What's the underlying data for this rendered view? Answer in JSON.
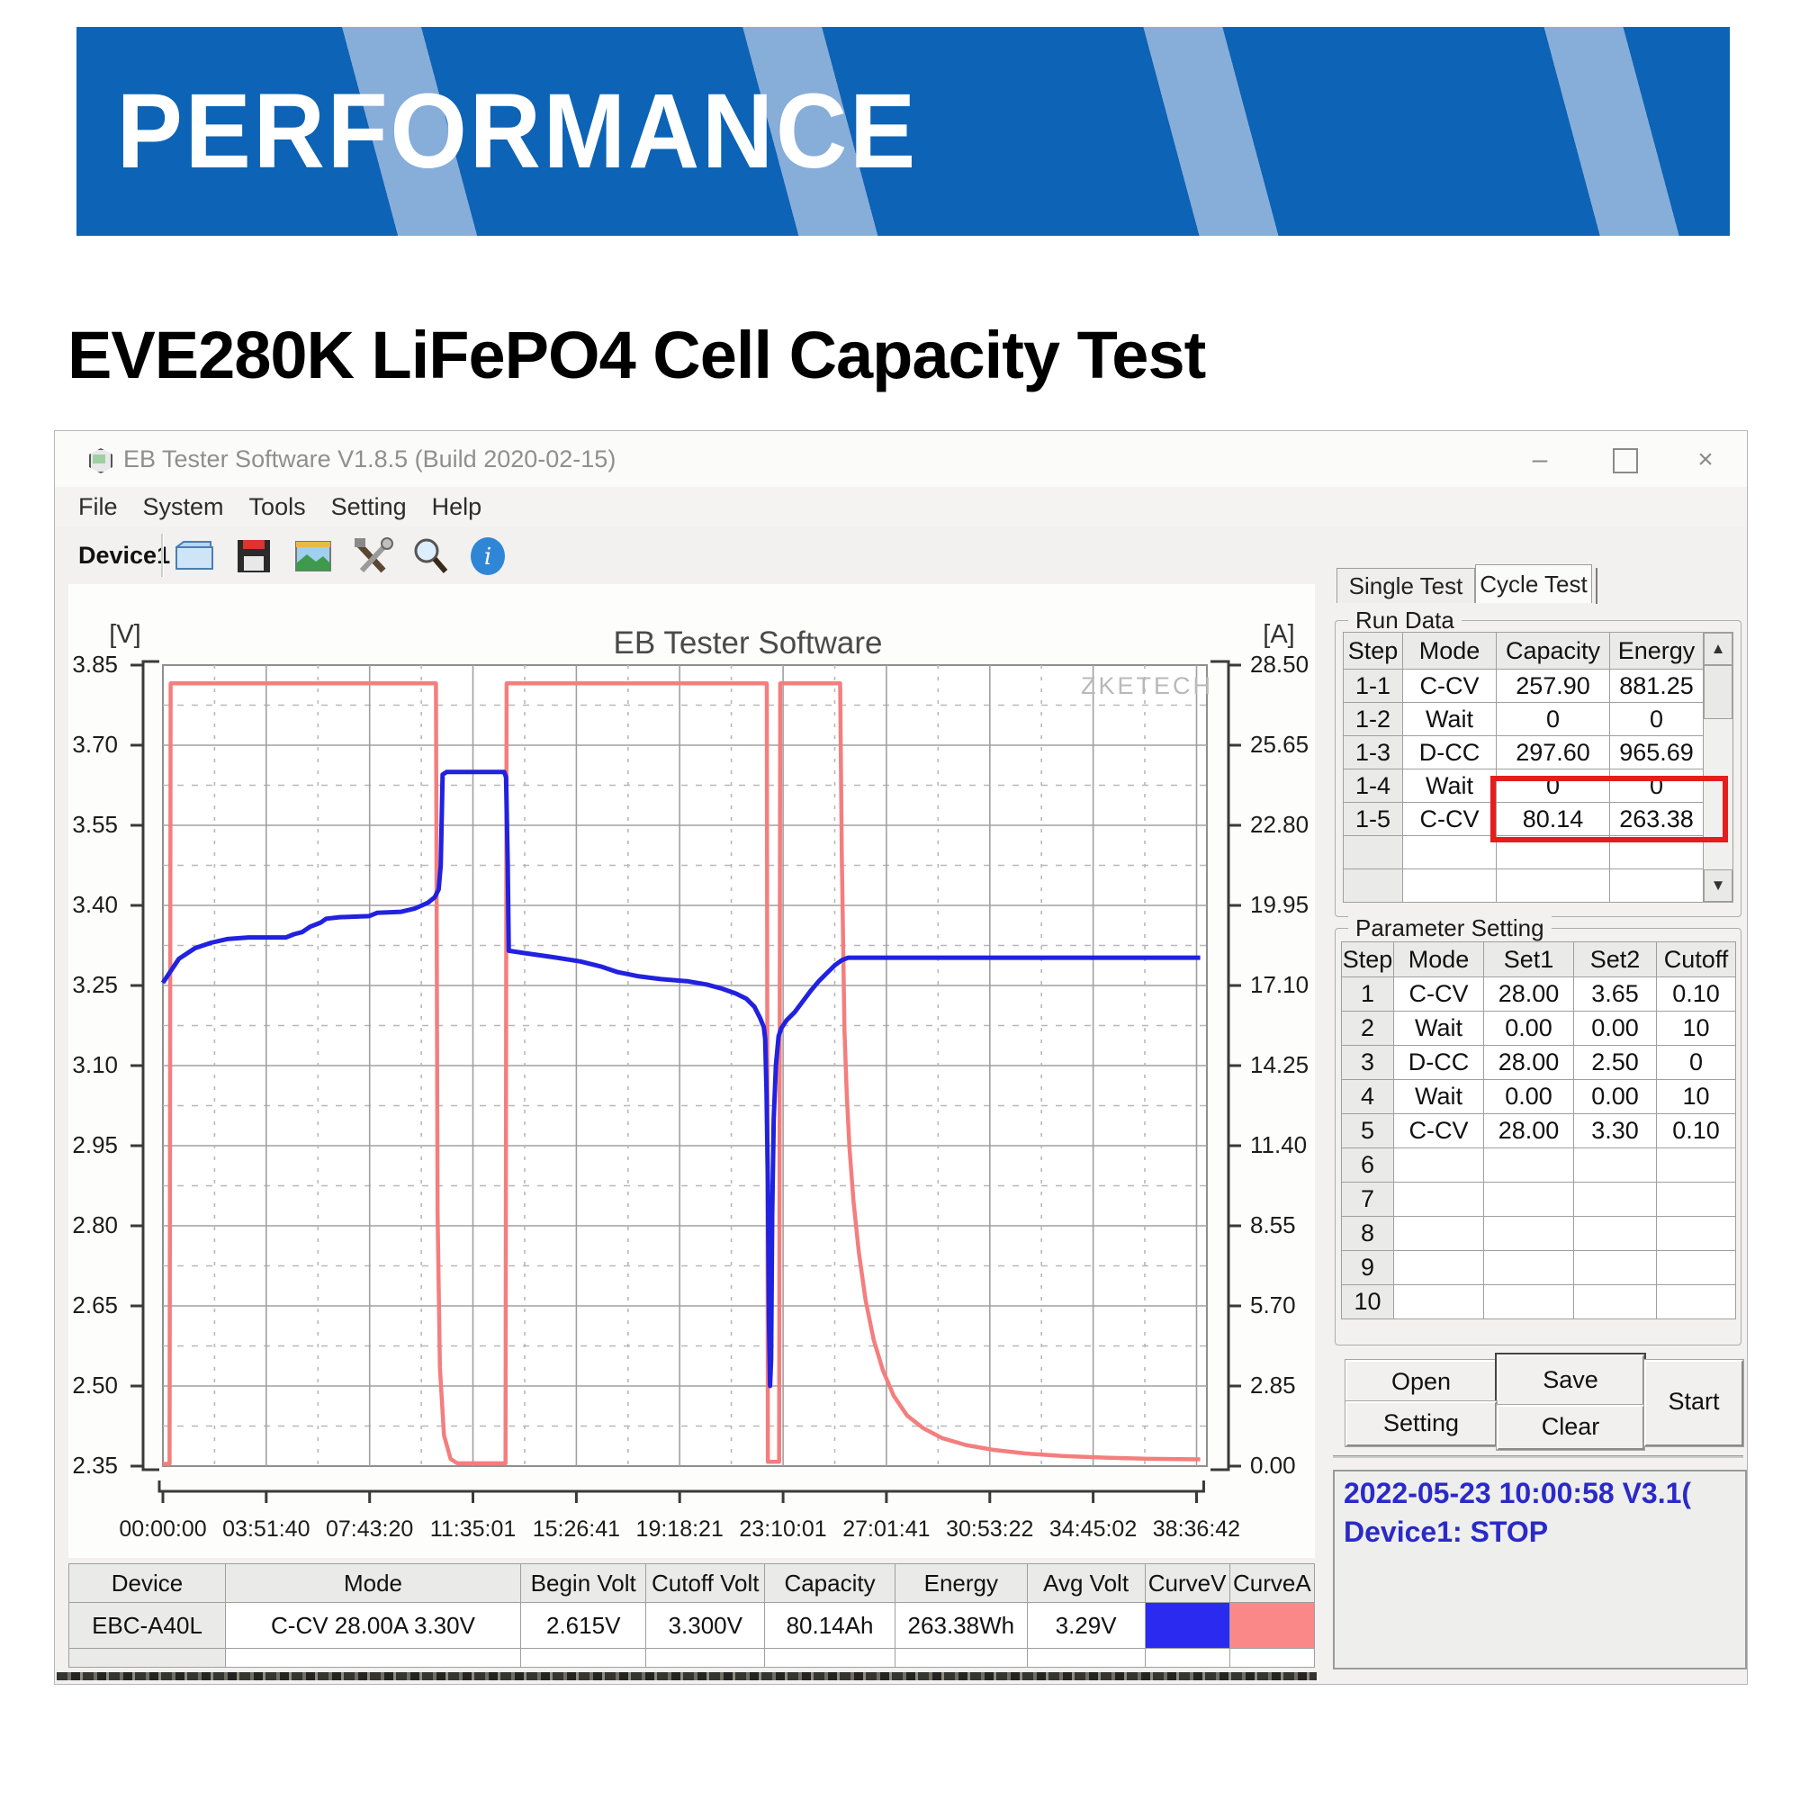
{
  "banner": {
    "title": "PERFORMANCE",
    "bg_color": "#0d63b5",
    "stripe_color": "#87add9"
  },
  "heading": "EVE280K LiFePO4 Cell Capacity Test",
  "window": {
    "title": "EB Tester Software V1.8.5 (Build 2020-02-15)",
    "menu": [
      "File",
      "System",
      "Tools",
      "Setting",
      "Help"
    ],
    "toolbar": {
      "device_label": "Device1",
      "icons": [
        "folder-icon",
        "save-icon",
        "image-icon",
        "tools-icon",
        "zoom-icon",
        "info-icon"
      ]
    },
    "controls": {
      "minimize": "–",
      "maximize": "",
      "close": "×"
    }
  },
  "chart_data": {
    "type": "line",
    "title": "EB Tester Software",
    "watermark": "ZKETECH",
    "left_axis_unit": "[V]",
    "right_axis_unit": "[A]",
    "x_ticks": [
      "00:00:00",
      "03:51:40",
      "07:43:20",
      "11:35:01",
      "15:26:41",
      "19:18:21",
      "23:10:01",
      "27:01:41",
      "30:53:22",
      "34:45:02",
      "38:36:42"
    ],
    "x_tick_hours": [
      0,
      3.8611,
      7.7222,
      11.5836,
      15.4447,
      19.3058,
      23.1669,
      27.0281,
      30.8894,
      34.7506,
      38.6117
    ],
    "x_range_hours": [
      0,
      39.0
    ],
    "v_ticks": [
      "3.85",
      "3.70",
      "3.55",
      "3.40",
      "3.25",
      "3.10",
      "2.95",
      "2.80",
      "2.65",
      "2.50",
      "2.35"
    ],
    "v_range": [
      2.35,
      3.85
    ],
    "a_ticks": [
      "28.50",
      "25.65",
      "22.80",
      "19.95",
      "17.10",
      "14.25",
      "11.40",
      "8.55",
      "5.70",
      "2.85",
      "0.00"
    ],
    "a_range": [
      0,
      28.5
    ],
    "grid": "solid major, dashed minor",
    "series": [
      {
        "name": "CurveV",
        "axis": "V",
        "color": "#2121e0",
        "points": [
          [
            0,
            3.255
          ],
          [
            0.2,
            3.27
          ],
          [
            0.6,
            3.3
          ],
          [
            1.2,
            3.32
          ],
          [
            1.8,
            3.33
          ],
          [
            2.4,
            3.337
          ],
          [
            3.2,
            3.34
          ],
          [
            4.6,
            3.34
          ],
          [
            4.9,
            3.346
          ],
          [
            5.2,
            3.35
          ],
          [
            5.5,
            3.36
          ],
          [
            5.9,
            3.368
          ],
          [
            6.1,
            3.375
          ],
          [
            6.6,
            3.378
          ],
          [
            7.7,
            3.38
          ],
          [
            8.0,
            3.386
          ],
          [
            8.9,
            3.388
          ],
          [
            9.4,
            3.394
          ],
          [
            9.9,
            3.405
          ],
          [
            10.15,
            3.415
          ],
          [
            10.3,
            3.43
          ],
          [
            10.38,
            3.475
          ],
          [
            10.45,
            3.645
          ],
          [
            10.6,
            3.65
          ],
          [
            12.75,
            3.65
          ],
          [
            12.82,
            3.64
          ],
          [
            12.88,
            3.48
          ],
          [
            12.92,
            3.315
          ],
          [
            13.6,
            3.31
          ],
          [
            14.6,
            3.303
          ],
          [
            15.6,
            3.295
          ],
          [
            16.4,
            3.285
          ],
          [
            17.0,
            3.275
          ],
          [
            17.8,
            3.267
          ],
          [
            18.6,
            3.262
          ],
          [
            19.6,
            3.258
          ],
          [
            20.3,
            3.252
          ],
          [
            20.9,
            3.244
          ],
          [
            21.4,
            3.235
          ],
          [
            21.8,
            3.225
          ],
          [
            22.1,
            3.21
          ],
          [
            22.3,
            3.19
          ],
          [
            22.45,
            3.172
          ],
          [
            22.5,
            3.15
          ],
          [
            22.55,
            3.05
          ],
          [
            22.6,
            2.88
          ],
          [
            22.64,
            2.62
          ],
          [
            22.68,
            2.5
          ],
          [
            22.72,
            2.55
          ],
          [
            22.76,
            2.82
          ],
          [
            22.82,
            3.0
          ],
          [
            22.9,
            3.1
          ],
          [
            23.0,
            3.155
          ],
          [
            23.1,
            3.17
          ],
          [
            23.3,
            3.185
          ],
          [
            23.6,
            3.2
          ],
          [
            23.9,
            3.22
          ],
          [
            24.2,
            3.24
          ],
          [
            24.5,
            3.258
          ],
          [
            24.8,
            3.273
          ],
          [
            25.1,
            3.288
          ],
          [
            25.35,
            3.297
          ],
          [
            25.6,
            3.302
          ],
          [
            38.75,
            3.302
          ]
        ]
      },
      {
        "name": "CurveA",
        "axis": "A",
        "color": "#f47e7e",
        "points": [
          [
            0,
            0.08
          ],
          [
            0.25,
            0.08
          ],
          [
            0.29,
            27.85
          ],
          [
            10.2,
            27.85
          ],
          [
            10.26,
            9
          ],
          [
            10.35,
            3.5
          ],
          [
            10.5,
            1.1
          ],
          [
            10.75,
            0.25
          ],
          [
            11.0,
            0.1
          ],
          [
            12.8,
            0.1
          ],
          [
            12.84,
            27.85
          ],
          [
            22.56,
            27.85
          ],
          [
            22.6,
            0.15
          ],
          [
            23.02,
            0.15
          ],
          [
            23.06,
            27.85
          ],
          [
            25.3,
            27.85
          ],
          [
            25.36,
            21.8
          ],
          [
            25.46,
            15.5
          ],
          [
            25.55,
            13.2
          ],
          [
            25.65,
            11.3
          ],
          [
            25.8,
            9.4
          ],
          [
            26.0,
            7.6
          ],
          [
            26.25,
            5.9
          ],
          [
            26.55,
            4.5
          ],
          [
            26.9,
            3.4
          ],
          [
            27.3,
            2.5
          ],
          [
            27.8,
            1.8
          ],
          [
            28.4,
            1.35
          ],
          [
            29.1,
            1.0
          ],
          [
            30.0,
            0.75
          ],
          [
            31.0,
            0.58
          ],
          [
            32.2,
            0.45
          ],
          [
            33.6,
            0.36
          ],
          [
            35.2,
            0.3
          ],
          [
            36.8,
            0.26
          ],
          [
            38.75,
            0.24
          ]
        ]
      }
    ]
  },
  "right_panel": {
    "tabs": [
      "Single Test",
      "Cycle Test"
    ],
    "active_tab": "Cycle Test",
    "run_data": {
      "group_label": "Run Data",
      "headers": [
        "Step",
        "Mode",
        "Capacity",
        "Energy"
      ],
      "rows": [
        [
          "1-1",
          "C-CV",
          "257.90",
          "881.25"
        ],
        [
          "1-2",
          "Wait",
          "0",
          "0"
        ],
        [
          "1-3",
          "D-CC",
          "297.60",
          "965.69"
        ],
        [
          "1-4",
          "Wait",
          "0",
          "0"
        ],
        [
          "1-5",
          "C-CV",
          "80.14",
          "263.38"
        ],
        [
          "",
          "",
          "",
          ""
        ],
        [
          "",
          "",
          "",
          ""
        ]
      ],
      "highlighted_row": "1-3",
      "highlight_color": "#e51d1d",
      "scrollbar": {
        "up": "▲",
        "down": "▼"
      }
    },
    "parameter_setting": {
      "group_label": "Parameter Setting",
      "headers": [
        "Step",
        "Mode",
        "Set1",
        "Set2",
        "Cutoff"
      ],
      "rows": [
        [
          "1",
          "C-CV",
          "28.00",
          "3.65",
          "0.10"
        ],
        [
          "2",
          "Wait",
          "0.00",
          "0.00",
          "10"
        ],
        [
          "3",
          "D-CC",
          "28.00",
          "2.50",
          "0"
        ],
        [
          "4",
          "Wait",
          "0.00",
          "0.00",
          "10"
        ],
        [
          "5",
          "C-CV",
          "28.00",
          "3.30",
          "0.10"
        ],
        [
          "6",
          "",
          "",
          "",
          ""
        ],
        [
          "7",
          "",
          "",
          "",
          ""
        ],
        [
          "8",
          "",
          "",
          "",
          ""
        ],
        [
          "9",
          "",
          "",
          "",
          ""
        ],
        [
          "10",
          "",
          "",
          "",
          ""
        ]
      ]
    },
    "buttons": {
      "open": "Open",
      "save": "Save",
      "setting": "Setting",
      "clear": "Clear",
      "start": "Start"
    },
    "status": {
      "line1": "2022-05-23 10:00:58  V3.1(",
      "line2": "Device1: STOP",
      "text_color": "#2a2ac8"
    }
  },
  "bottom_table": {
    "headers": [
      "Device",
      "Mode",
      "Begin Volt",
      "Cutoff Volt",
      "Capacity",
      "Energy",
      "Avg Volt",
      "CurveV",
      "CurveA"
    ],
    "row": [
      "EBC-A40L",
      "C-CV 28.00A 3.30V",
      "2.615V",
      "3.300V",
      "80.14Ah",
      "263.38Wh",
      "3.29V",
      {
        "swatch": "#2a2af0"
      },
      {
        "swatch": "#fb8888"
      }
    ]
  }
}
